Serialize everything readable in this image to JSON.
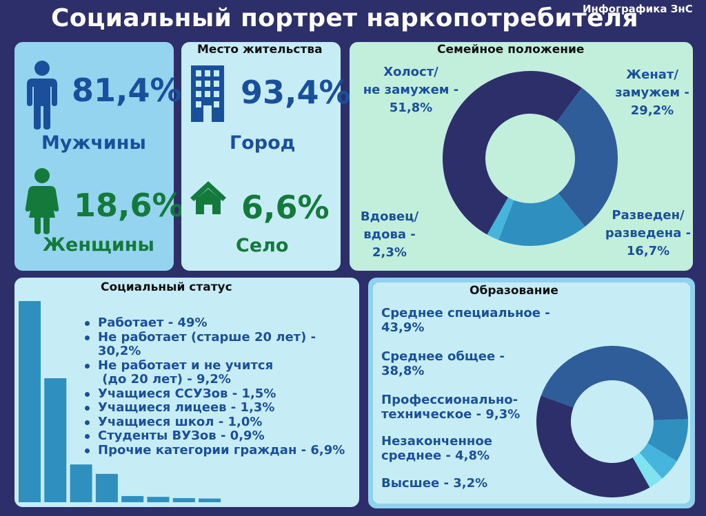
{
  "header": {
    "title": "Социальный портрет наркопотребителя",
    "brand": "Инфографика ЗнС"
  },
  "gender": {
    "male": {
      "value": "81,4%",
      "label": "Мужчины"
    },
    "female": {
      "value": "18,6%",
      "label": "Женщины"
    }
  },
  "residence": {
    "title": "Место жительства",
    "city": {
      "value": "93,4%",
      "label": "Город"
    },
    "village": {
      "value": "6,6%",
      "label": "Село"
    }
  },
  "colors": {
    "navy": "#2d2f6b",
    "mid_blue": "#2e5d99",
    "steel_blue": "#2f8fbf",
    "light_blue": "#45b5dd",
    "cyan": "#7fe3f0",
    "text_blue": "#1a4f9c",
    "text_green": "#147a3c"
  },
  "chart_data": [
    {
      "type": "pie",
      "title": "Семейное положение",
      "categories": [
        "Холост/ не замужем",
        "Женат/ замужем",
        "Разведен/ разведена",
        "Вдовец/ вдова"
      ],
      "values": [
        51.8,
        29.2,
        16.7,
        2.3
      ],
      "labels": [
        [
          "Холост/",
          "не замужем -",
          "51,8%"
        ],
        [
          "Женат/",
          "замужем -",
          "29,2%"
        ],
        [
          "Разведен/",
          "разведена -",
          "16,7%"
        ],
        [
          "Вдовец/",
          "вдова -",
          "2,3%"
        ]
      ]
    },
    {
      "type": "bar",
      "title": "Социальный статус",
      "categories": [
        "Работает",
        "Не работает (старше 20 лет)",
        "Не работает и не учится (до 20 лет)",
        "Учащиеся ССУЗов",
        "Учащиеся лицеев",
        "Учащиеся школ",
        "Студенты ВУЗов",
        "Прочие категории граждан"
      ],
      "values": [
        49,
        30.2,
        9.2,
        1.5,
        1.3,
        1.0,
        0.9,
        6.9
      ],
      "bar_order": [
        49,
        30.2,
        9.2,
        6.9,
        1.5,
        1.3,
        1.0,
        0.9
      ],
      "legend": [
        [
          "Работает - 49%"
        ],
        [
          "Не работает (старше 20 лет) -",
          "30,2%"
        ],
        [
          "Не работает и не учится",
          " (до 20 лет) - 9,2%"
        ],
        [
          "Учащиеся ССУЗов - 1,5%"
        ],
        [
          "Учащиеся лицеев - 1,3%"
        ],
        [
          "Учащиеся школ - 1,0%"
        ],
        [
          "Студенты ВУЗов - 0,9%"
        ],
        [
          "Прочие категории граждан - 6,9%"
        ]
      ]
    },
    {
      "type": "pie",
      "title": "Образование",
      "categories": [
        "Среднее специальное",
        "Среднее общее",
        "Профессионально-техническое",
        "Незаконченное среднее",
        "Высшее"
      ],
      "values": [
        43.9,
        38.8,
        9.3,
        4.8,
        3.2
      ],
      "labels": [
        [
          "Среднее специальное -",
          "43,9%"
        ],
        [
          "Среднее общее -",
          "38,8%"
        ],
        [
          "Профессионально-",
          "техническое - 9,3%"
        ],
        [
          "Незаконченное",
          "среднее - 4,8%"
        ],
        [
          "Высшее - 3,2%"
        ]
      ]
    }
  ]
}
